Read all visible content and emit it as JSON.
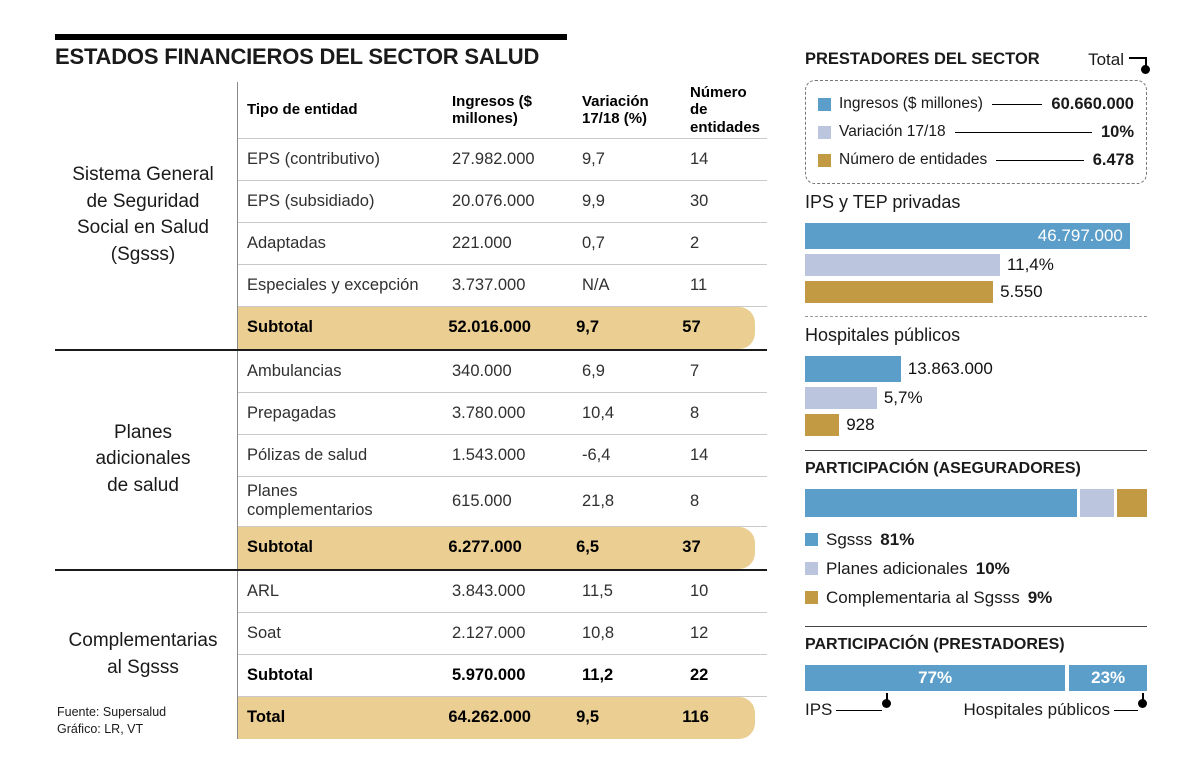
{
  "title": "ESTADOS FINANCIEROS DEL SECTOR SALUD",
  "footer": {
    "source": "Fuente: Supersalud",
    "credit": "Gráfico: LR, VT"
  },
  "colors": {
    "blue": "#5B9EC9",
    "lavender": "#BCC5DE",
    "gold": "#C19A43",
    "highlight": "#EBCE92"
  },
  "table": {
    "headers": {
      "tipo": "Tipo de entidad",
      "ingresos": "Ingresos\n($ millones)",
      "variacion": "Variación\n17/18 (%)",
      "entidades": "Número de\nentidades"
    },
    "groups": [
      {
        "label": "Sistema General\nde Seguridad\nSocial en Salud\n(Sgsss)",
        "rows": [
          {
            "tipo": "EPS (contributivo)",
            "ingresos": "27.982.000",
            "variacion": "9,7",
            "entidades": "14"
          },
          {
            "tipo": "EPS (subsidiado)",
            "ingresos": "20.076.000",
            "variacion": "9,9",
            "entidades": "30"
          },
          {
            "tipo": "Adaptadas",
            "ingresos": "221.000",
            "variacion": "0,7",
            "entidades": "2"
          },
          {
            "tipo": "Especiales y excepción",
            "ingresos": "3.737.000",
            "variacion": "N/A",
            "entidades": "11"
          },
          {
            "tipo": "Subtotal",
            "ingresos": "52.016.000",
            "variacion": "9,7",
            "entidades": "57"
          }
        ]
      },
      {
        "label": "Planes\nadicionales\nde salud",
        "rows": [
          {
            "tipo": "Ambulancias",
            "ingresos": "340.000",
            "variacion": "6,9",
            "entidades": "7"
          },
          {
            "tipo": "Prepagadas",
            "ingresos": "3.780.000",
            "variacion": "10,4",
            "entidades": "8"
          },
          {
            "tipo": "Pólizas de salud",
            "ingresos": "1.543.000",
            "variacion": "-6,4",
            "entidades": "14"
          },
          {
            "tipo": "Planes\ncomplementarios",
            "ingresos": "615.000",
            "variacion": "21,8",
            "entidades": "8"
          },
          {
            "tipo": "Subtotal",
            "ingresos": "6.277.000",
            "variacion": "6,5",
            "entidades": "37"
          }
        ]
      },
      {
        "label": "Complementarias\nal Sgsss",
        "rows": [
          {
            "tipo": "ARL",
            "ingresos": "3.843.000",
            "variacion": "11,5",
            "entidades": "10"
          },
          {
            "tipo": "Soat",
            "ingresos": "2.127.000",
            "variacion": "10,8",
            "entidades": "12"
          },
          {
            "tipo": "Subtotal",
            "ingresos": "5.970.000",
            "variacion": "11,2",
            "entidades": "22"
          },
          {
            "tipo": "Total",
            "ingresos": "64.262.000",
            "variacion": "9,5",
            "entidades": "116"
          }
        ]
      }
    ]
  },
  "prestadores": {
    "title": "PRESTADORES DEL SECTOR",
    "total_label": "Total",
    "legend": [
      {
        "label": "Ingresos ($ millones)",
        "value": "60.660.000"
      },
      {
        "label": "Variación 17/18",
        "value": "10%"
      },
      {
        "label": "Número de entidades",
        "value": "6.478"
      }
    ],
    "sections": [
      {
        "name": "IPS y TEP privadas",
        "bars": [
          {
            "metric": "ingresos",
            "value": "46.797.000",
            "width_pct": 95
          },
          {
            "metric": "variacion",
            "value": "11,4%",
            "width_pct": 57
          },
          {
            "metric": "entidades",
            "value": "5.550",
            "width_pct": 55
          }
        ]
      },
      {
        "name": "Hospitales públicos",
        "bars": [
          {
            "metric": "ingresos",
            "value": "13.863.000",
            "width_pct": 28
          },
          {
            "metric": "variacion",
            "value": "5,7%",
            "width_pct": 21
          },
          {
            "metric": "entidades",
            "value": "928",
            "width_pct": 10
          }
        ]
      }
    ]
  },
  "aseguradores": {
    "title": "PARTICIPACIÓN (ASEGURADORES)",
    "segments": [
      {
        "label": "Sgsss",
        "pct": "81%",
        "width_pct": 81
      },
      {
        "label": "Planes adicionales",
        "pct": "10%",
        "width_pct": 10
      },
      {
        "label": "Complementaria al Sgsss",
        "pct": "9%",
        "width_pct": 9
      }
    ]
  },
  "prestadores_part": {
    "title": "PARTICIPACIÓN (PRESTADORES)",
    "segments": [
      {
        "label": "IPS",
        "pct": "77%",
        "width_pct": 77
      },
      {
        "label": "Hospitales públicos",
        "pct": "23%",
        "width_pct": 23
      }
    ]
  },
  "chart_data": [
    {
      "type": "table",
      "title": "ESTADOS FINANCIEROS DEL SECTOR SALUD",
      "columns": [
        "Tipo de entidad",
        "Ingresos ($ millones)",
        "Variación 17/18 (%)",
        "Número de entidades"
      ],
      "groups": [
        "Sistema General de Seguridad Social en Salud (Sgsss)",
        "Planes adicionales de salud",
        "Complementarias al Sgsss"
      ],
      "rows": [
        [
          "EPS (contributivo)",
          27982000,
          9.7,
          14
        ],
        [
          "EPS (subsidiado)",
          20076000,
          9.9,
          30
        ],
        [
          "Adaptadas",
          221000,
          0.7,
          2
        ],
        [
          "Especiales y excepción",
          3737000,
          null,
          11
        ],
        [
          "Subtotal Sgsss",
          52016000,
          9.7,
          57
        ],
        [
          "Ambulancias",
          340000,
          6.9,
          7
        ],
        [
          "Prepagadas",
          3780000,
          10.4,
          8
        ],
        [
          "Pólizas de salud",
          1543000,
          -6.4,
          14
        ],
        [
          "Planes complementarios",
          615000,
          21.8,
          8
        ],
        [
          "Subtotal Planes adicionales",
          6277000,
          6.5,
          37
        ],
        [
          "ARL",
          3843000,
          11.5,
          10
        ],
        [
          "Soat",
          2127000,
          10.8,
          12
        ],
        [
          "Subtotal Complementarias",
          5970000,
          11.2,
          22
        ],
        [
          "Total",
          64262000,
          9.5,
          116
        ]
      ]
    },
    {
      "type": "bar",
      "title": "PRESTADORES DEL SECTOR",
      "categories": [
        "Total",
        "IPS y TEP privadas",
        "Hospitales públicos"
      ],
      "series": [
        {
          "name": "Ingresos ($ millones)",
          "values": [
            60660000,
            46797000,
            13863000
          ]
        },
        {
          "name": "Variación 17/18 (%)",
          "values": [
            10,
            11.4,
            5.7
          ]
        },
        {
          "name": "Número de entidades",
          "values": [
            6478,
            5550,
            928
          ]
        }
      ],
      "legend_position": "top"
    },
    {
      "type": "bar",
      "title": "PARTICIPACIÓN (ASEGURADORES)",
      "categories": [
        "Sgsss",
        "Planes adicionales",
        "Complementaria al Sgsss"
      ],
      "values": [
        81,
        10,
        9
      ],
      "unit": "%"
    },
    {
      "type": "bar",
      "title": "PARTICIPACIÓN (PRESTADORES)",
      "categories": [
        "IPS",
        "Hospitales públicos"
      ],
      "values": [
        77,
        23
      ],
      "unit": "%"
    }
  ]
}
